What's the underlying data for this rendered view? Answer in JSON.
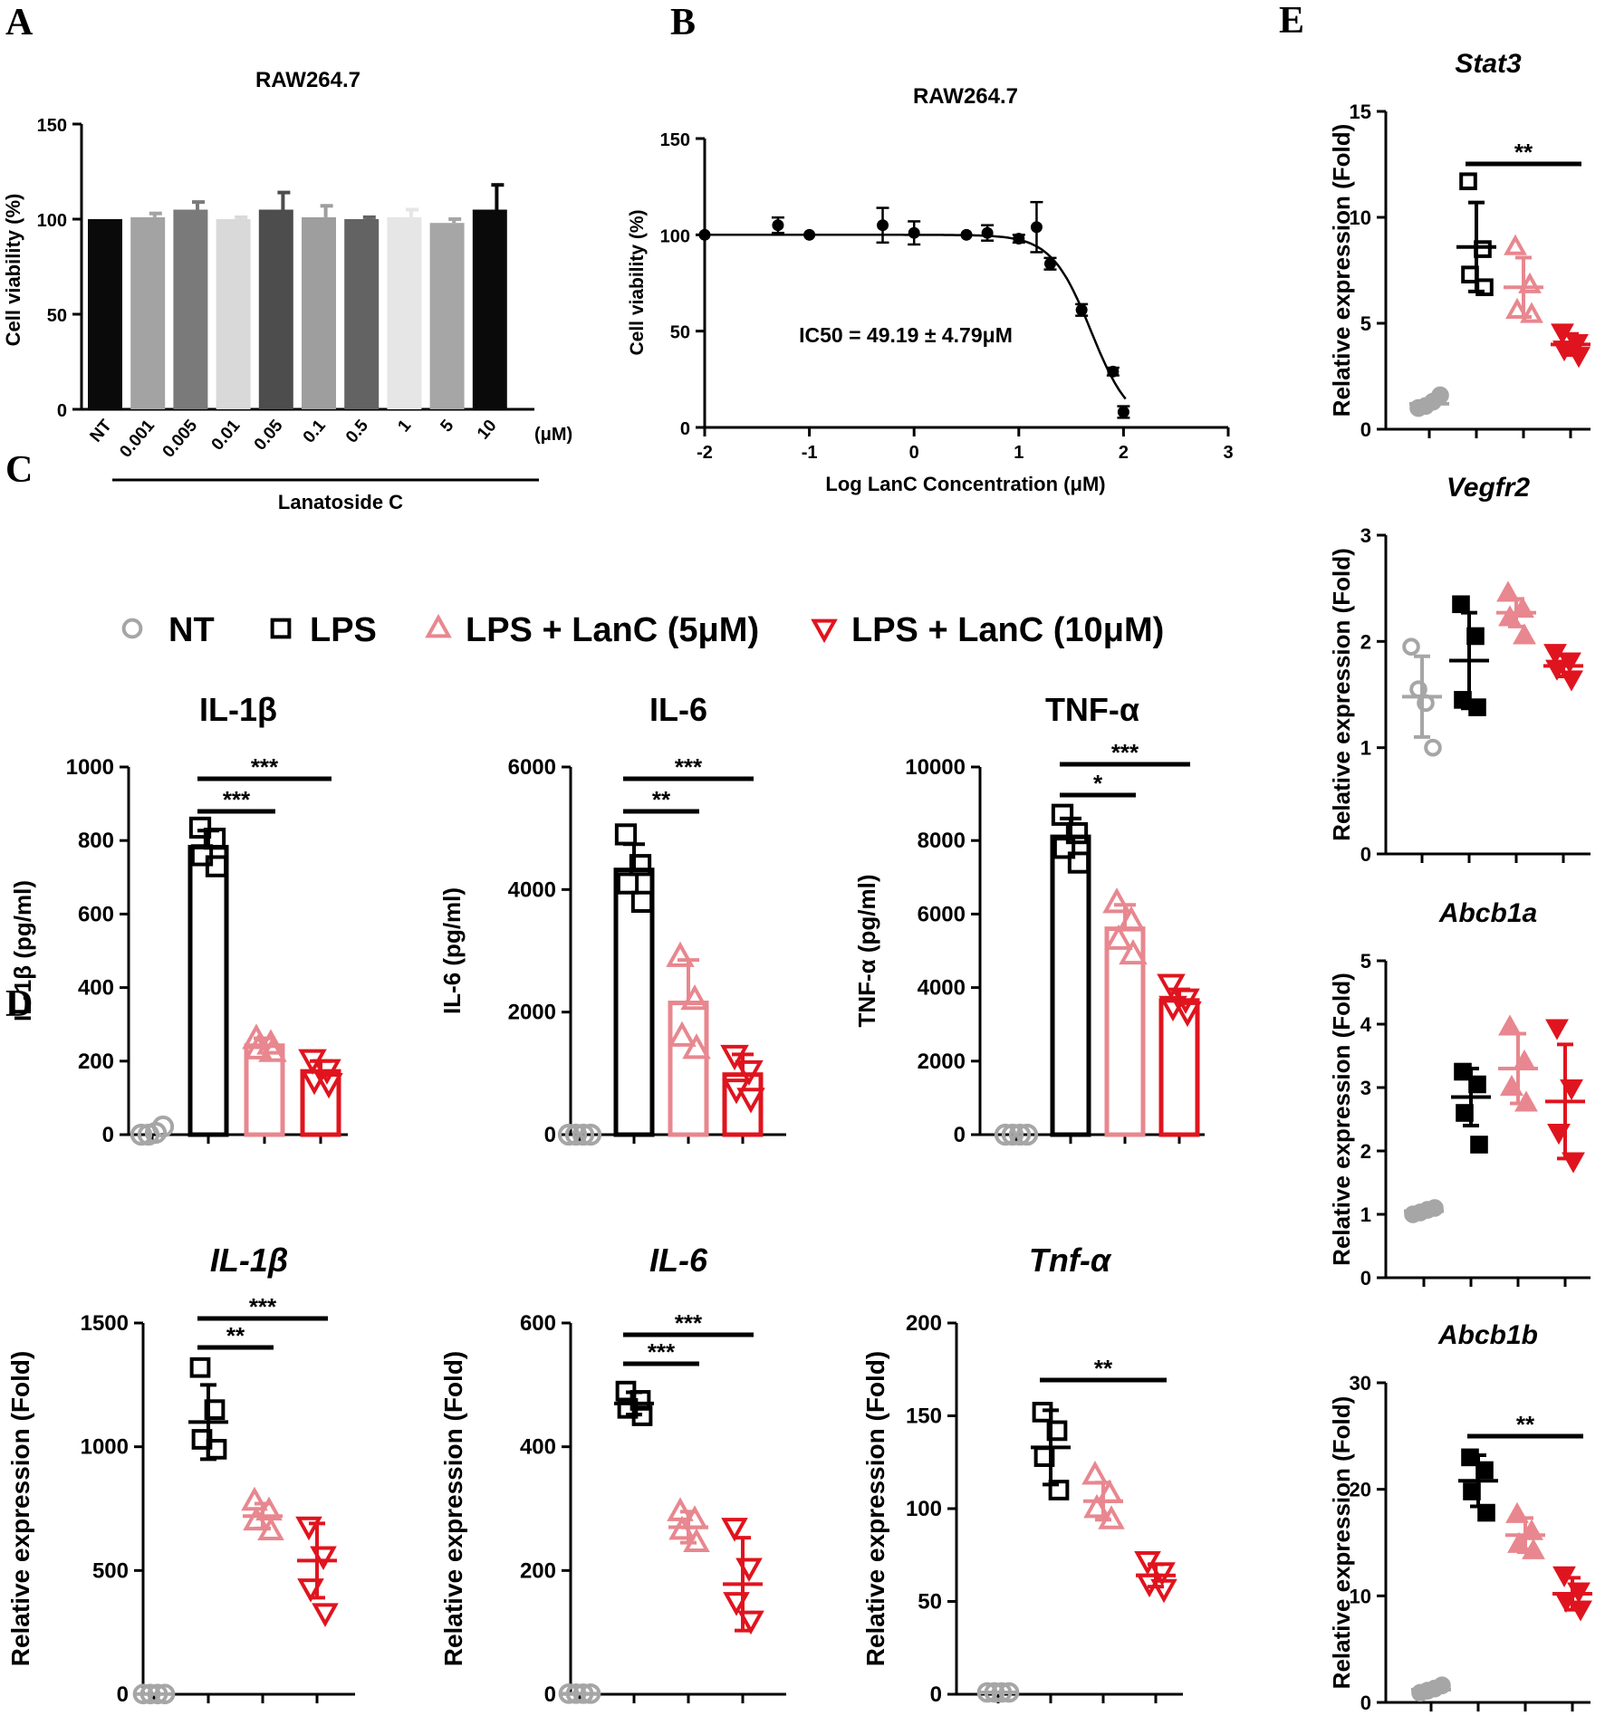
{
  "panel_labels": [
    "A",
    "B",
    "C",
    "D",
    "E"
  ],
  "legend": [
    {
      "label": "NT",
      "marker": "circle",
      "color": "#a6a6a6"
    },
    {
      "label": "LPS",
      "marker": "square",
      "color": "#000000"
    },
    {
      "label": "LPS + LanC (5μM)",
      "marker": "triangle-up",
      "color": "#e8878f"
    },
    {
      "label": "LPS + LanC (10μM)",
      "marker": "triangle-down",
      "color": "#e0141e"
    }
  ],
  "chart_data": [
    {
      "panel": "A",
      "type": "bar",
      "title": "RAW264.7",
      "ylabel": "Cell viability (%)",
      "xlabel": "Lanatoside C",
      "unit_label": "(μM)",
      "ylim": [
        0,
        150
      ],
      "yticks": [
        0,
        50,
        100,
        150
      ],
      "categories": [
        "NT",
        "0.001",
        "0.005",
        "0.01",
        "0.05",
        "0.1",
        "0.5",
        "1",
        "5",
        "10"
      ],
      "values": [
        100,
        101,
        105,
        100,
        105,
        101,
        100,
        101,
        98,
        105
      ],
      "errors": [
        0,
        2,
        4,
        1,
        9,
        6,
        1,
        4,
        2,
        13
      ],
      "colors": [
        "#0a0a0a",
        "#a3a3a3",
        "#7a7a7a",
        "#d9d9d9",
        "#4d4d4d",
        "#9e9e9e",
        "#636363",
        "#e6e6e6",
        "#a6a6a6",
        "#0a0a0a"
      ]
    },
    {
      "panel": "B",
      "type": "scatter",
      "title": "RAW264.7",
      "ylabel": "Cell viability (%)",
      "xlabel": "Log LanC Concentration (μM)",
      "annotation": "IC50 = 49.19 ± 4.79μM",
      "annotation_color": "#e0141e",
      "xlim": [
        -2,
        3
      ],
      "ylim": [
        0,
        150
      ],
      "xticks": [
        -2,
        -1,
        0,
        1,
        2,
        3
      ],
      "yticks": [
        0,
        50,
        100,
        150
      ],
      "points": [
        {
          "x": -2,
          "y": 100,
          "err": 0
        },
        {
          "x": -1.3,
          "y": 105,
          "err": 4
        },
        {
          "x": -1,
          "y": 100,
          "err": 0
        },
        {
          "x": -0.3,
          "y": 105,
          "err": 9
        },
        {
          "x": 0,
          "y": 101,
          "err": 6
        },
        {
          "x": 0.5,
          "y": 100,
          "err": 0
        },
        {
          "x": 0.7,
          "y": 101,
          "err": 4
        },
        {
          "x": 1,
          "y": 98,
          "err": 2
        },
        {
          "x": 1.17,
          "y": 104,
          "err": 13
        },
        {
          "x": 1.3,
          "y": 85,
          "err": 3
        },
        {
          "x": 1.6,
          "y": 61,
          "err": 3
        },
        {
          "x": 1.9,
          "y": 29,
          "err": 2
        },
        {
          "x": 2,
          "y": 8,
          "err": 3
        }
      ],
      "fit": {
        "top": 100,
        "ic50_log": 1.69,
        "hill": 2.3
      }
    },
    {
      "panel": "C",
      "type": "bar",
      "title": "IL-1β",
      "ylabel": "IL-1β (pg/ml)",
      "ylim": [
        0,
        1000
      ],
      "yticks": [
        0,
        200,
        400,
        600,
        800,
        1000
      ],
      "groups": [
        {
          "mean": 2,
          "sd": 0,
          "points": [
            0,
            0,
            5,
            22
          ]
        },
        {
          "mean": 782,
          "sd": 45,
          "points": [
            835,
            805,
            760,
            730
          ]
        },
        {
          "mean": 242,
          "sd": 20,
          "points": [
            260,
            245,
            232,
            225
          ]
        },
        {
          "mean": 172,
          "sd": 28,
          "points": [
            205,
            178,
            150,
            140
          ]
        }
      ],
      "significance": [
        {
          "from": 1,
          "to": 2,
          "label": "***"
        },
        {
          "from": 1,
          "to": 3,
          "label": "***"
        }
      ]
    },
    {
      "panel": "C",
      "type": "bar",
      "title": "IL-6",
      "ylabel": "IL-6 (pg/ml)",
      "ylim": [
        0,
        6000
      ],
      "yticks": [
        0,
        2000,
        4000,
        6000
      ],
      "groups": [
        {
          "mean": 0,
          "sd": 0,
          "points": [
            0,
            0,
            0,
            0
          ]
        },
        {
          "mean": 4320,
          "sd": 420,
          "points": [
            4900,
            4400,
            4100,
            3800
          ]
        },
        {
          "mean": 2150,
          "sd": 700,
          "points": [
            2900,
            2200,
            1600,
            1400
          ]
        },
        {
          "mean": 980,
          "sd": 330,
          "points": [
            1300,
            1050,
            750,
            600
          ]
        }
      ],
      "significance": [
        {
          "from": 1,
          "to": 2,
          "label": "**"
        },
        {
          "from": 1,
          "to": 3,
          "label": "***"
        }
      ]
    },
    {
      "panel": "C",
      "type": "bar",
      "title": "TNF-α",
      "ylabel": "TNF-α (pg/ml)",
      "ylim": [
        0,
        10000
      ],
      "yticks": [
        0,
        2000,
        4000,
        6000,
        8000,
        10000
      ],
      "groups": [
        {
          "mean": 0,
          "sd": 0,
          "points": [
            0,
            0,
            0,
            0
          ]
        },
        {
          "mean": 8100,
          "sd": 500,
          "points": [
            8700,
            8200,
            7800,
            7400
          ]
        },
        {
          "mean": 5600,
          "sd": 650,
          "points": [
            6300,
            5800,
            5300,
            4900
          ]
        },
        {
          "mean": 3650,
          "sd": 300,
          "points": [
            4100,
            3700,
            3500,
            3350
          ]
        }
      ],
      "significance": [
        {
          "from": 1,
          "to": 2,
          "label": "*"
        },
        {
          "from": 1,
          "to": 3,
          "label": "***"
        }
      ]
    },
    {
      "panel": "D",
      "type": "scatter",
      "title": "IL-1β",
      "ylabel": "Relative expression (Fold)",
      "ylim": [
        0,
        1500
      ],
      "yticks": [
        0,
        500,
        1000,
        1500
      ],
      "groups": [
        {
          "mean": 1,
          "sd": 0,
          "points": [
            1,
            1,
            1,
            1
          ]
        },
        {
          "mean": 1100,
          "sd": 150,
          "points": [
            1320,
            1150,
            1030,
            990
          ]
        },
        {
          "mean": 720,
          "sd": 50,
          "points": [
            780,
            740,
            700,
            660
          ]
        },
        {
          "mean": 540,
          "sd": 150,
          "points": [
            680,
            560,
            430,
            330
          ]
        }
      ],
      "significance": [
        {
          "from": 1,
          "to": 2,
          "label": "**"
        },
        {
          "from": 1,
          "to": 3,
          "label": "***"
        }
      ]
    },
    {
      "panel": "D",
      "type": "scatter",
      "title": "IL-6",
      "ylabel": "Relative expression (Fold)",
      "ylim": [
        0,
        600
      ],
      "yticks": [
        0,
        200,
        400,
        600
      ],
      "groups": [
        {
          "mean": 1,
          "sd": 0,
          "points": [
            1,
            1,
            1,
            1
          ]
        },
        {
          "mean": 470,
          "sd": 18,
          "points": [
            490,
            475,
            462,
            450
          ]
        },
        {
          "mean": 270,
          "sd": 25,
          "points": [
            295,
            282,
            265,
            245
          ]
        },
        {
          "mean": 178,
          "sd": 75,
          "points": [
            270,
            205,
            150,
            120
          ]
        }
      ],
      "significance": [
        {
          "from": 1,
          "to": 2,
          "label": "***"
        },
        {
          "from": 1,
          "to": 3,
          "label": "***"
        }
      ]
    },
    {
      "panel": "D",
      "type": "scatter",
      "title": "Tnf-α",
      "ylabel": "Relative expression (Fold)",
      "ylim": [
        0,
        200
      ],
      "yticks": [
        0,
        50,
        100,
        150,
        200
      ],
      "groups": [
        {
          "mean": 1,
          "sd": 0,
          "points": [
            1,
            1,
            1,
            1
          ]
        },
        {
          "mean": 133,
          "sd": 20,
          "points": [
            152,
            142,
            128,
            110
          ]
        },
        {
          "mean": 104,
          "sd": 10,
          "points": [
            118,
            108,
            100,
            94
          ]
        },
        {
          "mean": 64,
          "sd": 6,
          "points": [
            72,
            66,
            60,
            57
          ]
        }
      ],
      "significance": [
        {
          "from": 1,
          "to": 3,
          "label": "**"
        }
      ]
    },
    {
      "panel": "E",
      "type": "scatter",
      "title": "Stat3",
      "ylabel": "Relative expression (Fold)",
      "ylim": [
        0,
        15
      ],
      "yticks": [
        0,
        5,
        10,
        15
      ],
      "fill": [
        "#a6a6a6",
        "none",
        "none",
        "#e0141e"
      ],
      "groups": [
        {
          "mean": 1.2,
          "sd": 0.15,
          "points": [
            1.0,
            1.1,
            1.3,
            1.6
          ]
        },
        {
          "mean": 8.6,
          "sd": 2.1,
          "points": [
            11.7,
            8.5,
            7.3,
            6.7
          ]
        },
        {
          "mean": 6.7,
          "sd": 1.4,
          "points": [
            8.6,
            6.8,
            5.6,
            5.4
          ]
        },
        {
          "mean": 4.0,
          "sd": 0.5,
          "points": [
            4.6,
            4.1,
            3.8,
            3.5
          ]
        }
      ],
      "significance": [
        {
          "from": 1,
          "to": 3,
          "label": "**"
        }
      ]
    },
    {
      "panel": "E",
      "type": "scatter",
      "title": "Vegfr2",
      "ylabel": "Relative expression (Fold)",
      "ylim": [
        0,
        3
      ],
      "yticks": [
        0,
        1,
        2,
        3
      ],
      "fill": [
        "none",
        "#000000",
        "#e8878f",
        "#e0141e"
      ],
      "groups": [
        {
          "mean": 1.48,
          "sd": 0.38,
          "points": [
            1.95,
            1.55,
            1.42,
            1.0
          ]
        },
        {
          "mean": 1.82,
          "sd": 0.45,
          "points": [
            2.35,
            2.05,
            1.45,
            1.38
          ]
        },
        {
          "mean": 2.27,
          "sd": 0.13,
          "points": [
            2.45,
            2.3,
            2.22,
            2.05
          ]
        },
        {
          "mean": 1.77,
          "sd": 0.1,
          "points": [
            1.9,
            1.82,
            1.75,
            1.65
          ]
        }
      ],
      "significance": []
    },
    {
      "panel": "E",
      "type": "scatter",
      "title": "Abcb1a",
      "ylabel": "Relative expression (Fold)",
      "ylim": [
        0,
        5
      ],
      "yticks": [
        0,
        1,
        2,
        3,
        4,
        5
      ],
      "fill": [
        "#a6a6a6",
        "#000000",
        "#e8878f",
        "#e0141e"
      ],
      "groups": [
        {
          "mean": 1.05,
          "sd": 0.05,
          "points": [
            1.0,
            1.03,
            1.07,
            1.1
          ]
        },
        {
          "mean": 2.85,
          "sd": 0.45,
          "points": [
            3.25,
            3.05,
            2.6,
            2.1
          ]
        },
        {
          "mean": 3.3,
          "sd": 0.55,
          "points": [
            3.95,
            3.4,
            3.0,
            2.75
          ]
        },
        {
          "mean": 2.78,
          "sd": 0.9,
          "points": [
            3.95,
            3.0,
            2.3,
            1.85
          ]
        }
      ],
      "significance": []
    },
    {
      "panel": "E",
      "type": "scatter",
      "title": "Abcb1b",
      "ylabel": "Relative expression (Fold)",
      "ylim": [
        0,
        30
      ],
      "yticks": [
        0,
        10,
        20,
        30
      ],
      "fill": [
        "#a6a6a6",
        "#000000",
        "#e8878f",
        "#e0141e"
      ],
      "groups": [
        {
          "mean": 1.2,
          "sd": 0.2,
          "points": [
            0.9,
            1.1,
            1.3,
            1.6
          ]
        },
        {
          "mean": 20.8,
          "sd": 2.4,
          "points": [
            23.0,
            21.8,
            19.8,
            17.8
          ]
        },
        {
          "mean": 15.7,
          "sd": 1.6,
          "points": [
            17.6,
            16.0,
            14.8,
            14.2
          ]
        },
        {
          "mean": 10.2,
          "sd": 1.5,
          "points": [
            12.0,
            10.5,
            9.6,
            8.8
          ]
        }
      ],
      "significance": [
        {
          "from": 1,
          "to": 3,
          "label": "**"
        }
      ]
    }
  ]
}
